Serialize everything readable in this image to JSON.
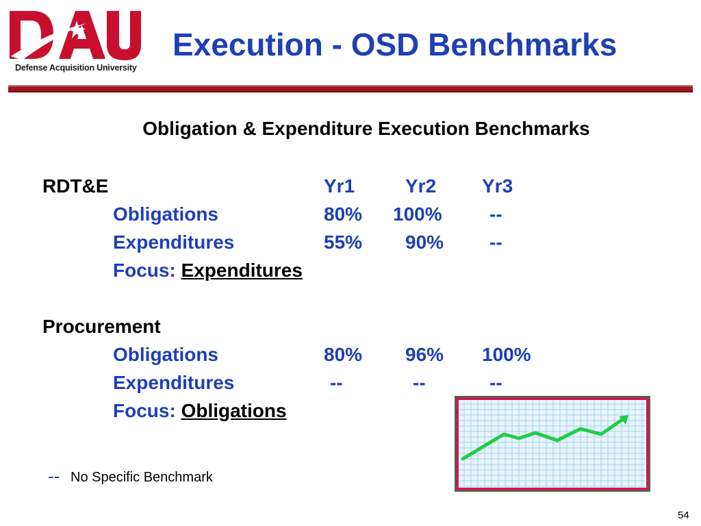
{
  "header": {
    "logo_letters": "DAU",
    "logo_caption": "Defense Acquisition University",
    "title": "Execution - OSD Benchmarks"
  },
  "subtitle": "Obligation & Expenditure Execution Benchmarks",
  "columns": [
    "Yr1",
    "Yr2",
    "Yr3"
  ],
  "sections": [
    {
      "name": "RDT&E",
      "rows": [
        {
          "label": "Obligations",
          "values": [
            "80%",
            "100%",
            "--"
          ]
        },
        {
          "label": "Expenditures",
          "values": [
            "55%",
            "90%",
            "--"
          ]
        }
      ],
      "focus_label": "Focus:",
      "focus_value": "Expenditures"
    },
    {
      "name": "Procurement",
      "rows": [
        {
          "label": "Obligations",
          "values": [
            "80%",
            "96%",
            "100%"
          ]
        },
        {
          "label": "Expenditures",
          "values": [
            "--",
            "--",
            "--"
          ]
        }
      ],
      "focus_label": "Focus:",
      "focus_value": "Obligations"
    }
  ],
  "legend": {
    "symbol": "--",
    "text": "No Specific Benchmark"
  },
  "page_number": "54",
  "colors": {
    "accent_blue": "#1e3fb5",
    "brand_red": "#c8102e",
    "rule_red": "#a0141e",
    "chart_line": "#22cc44",
    "chart_grid": "#9fd4f0"
  }
}
